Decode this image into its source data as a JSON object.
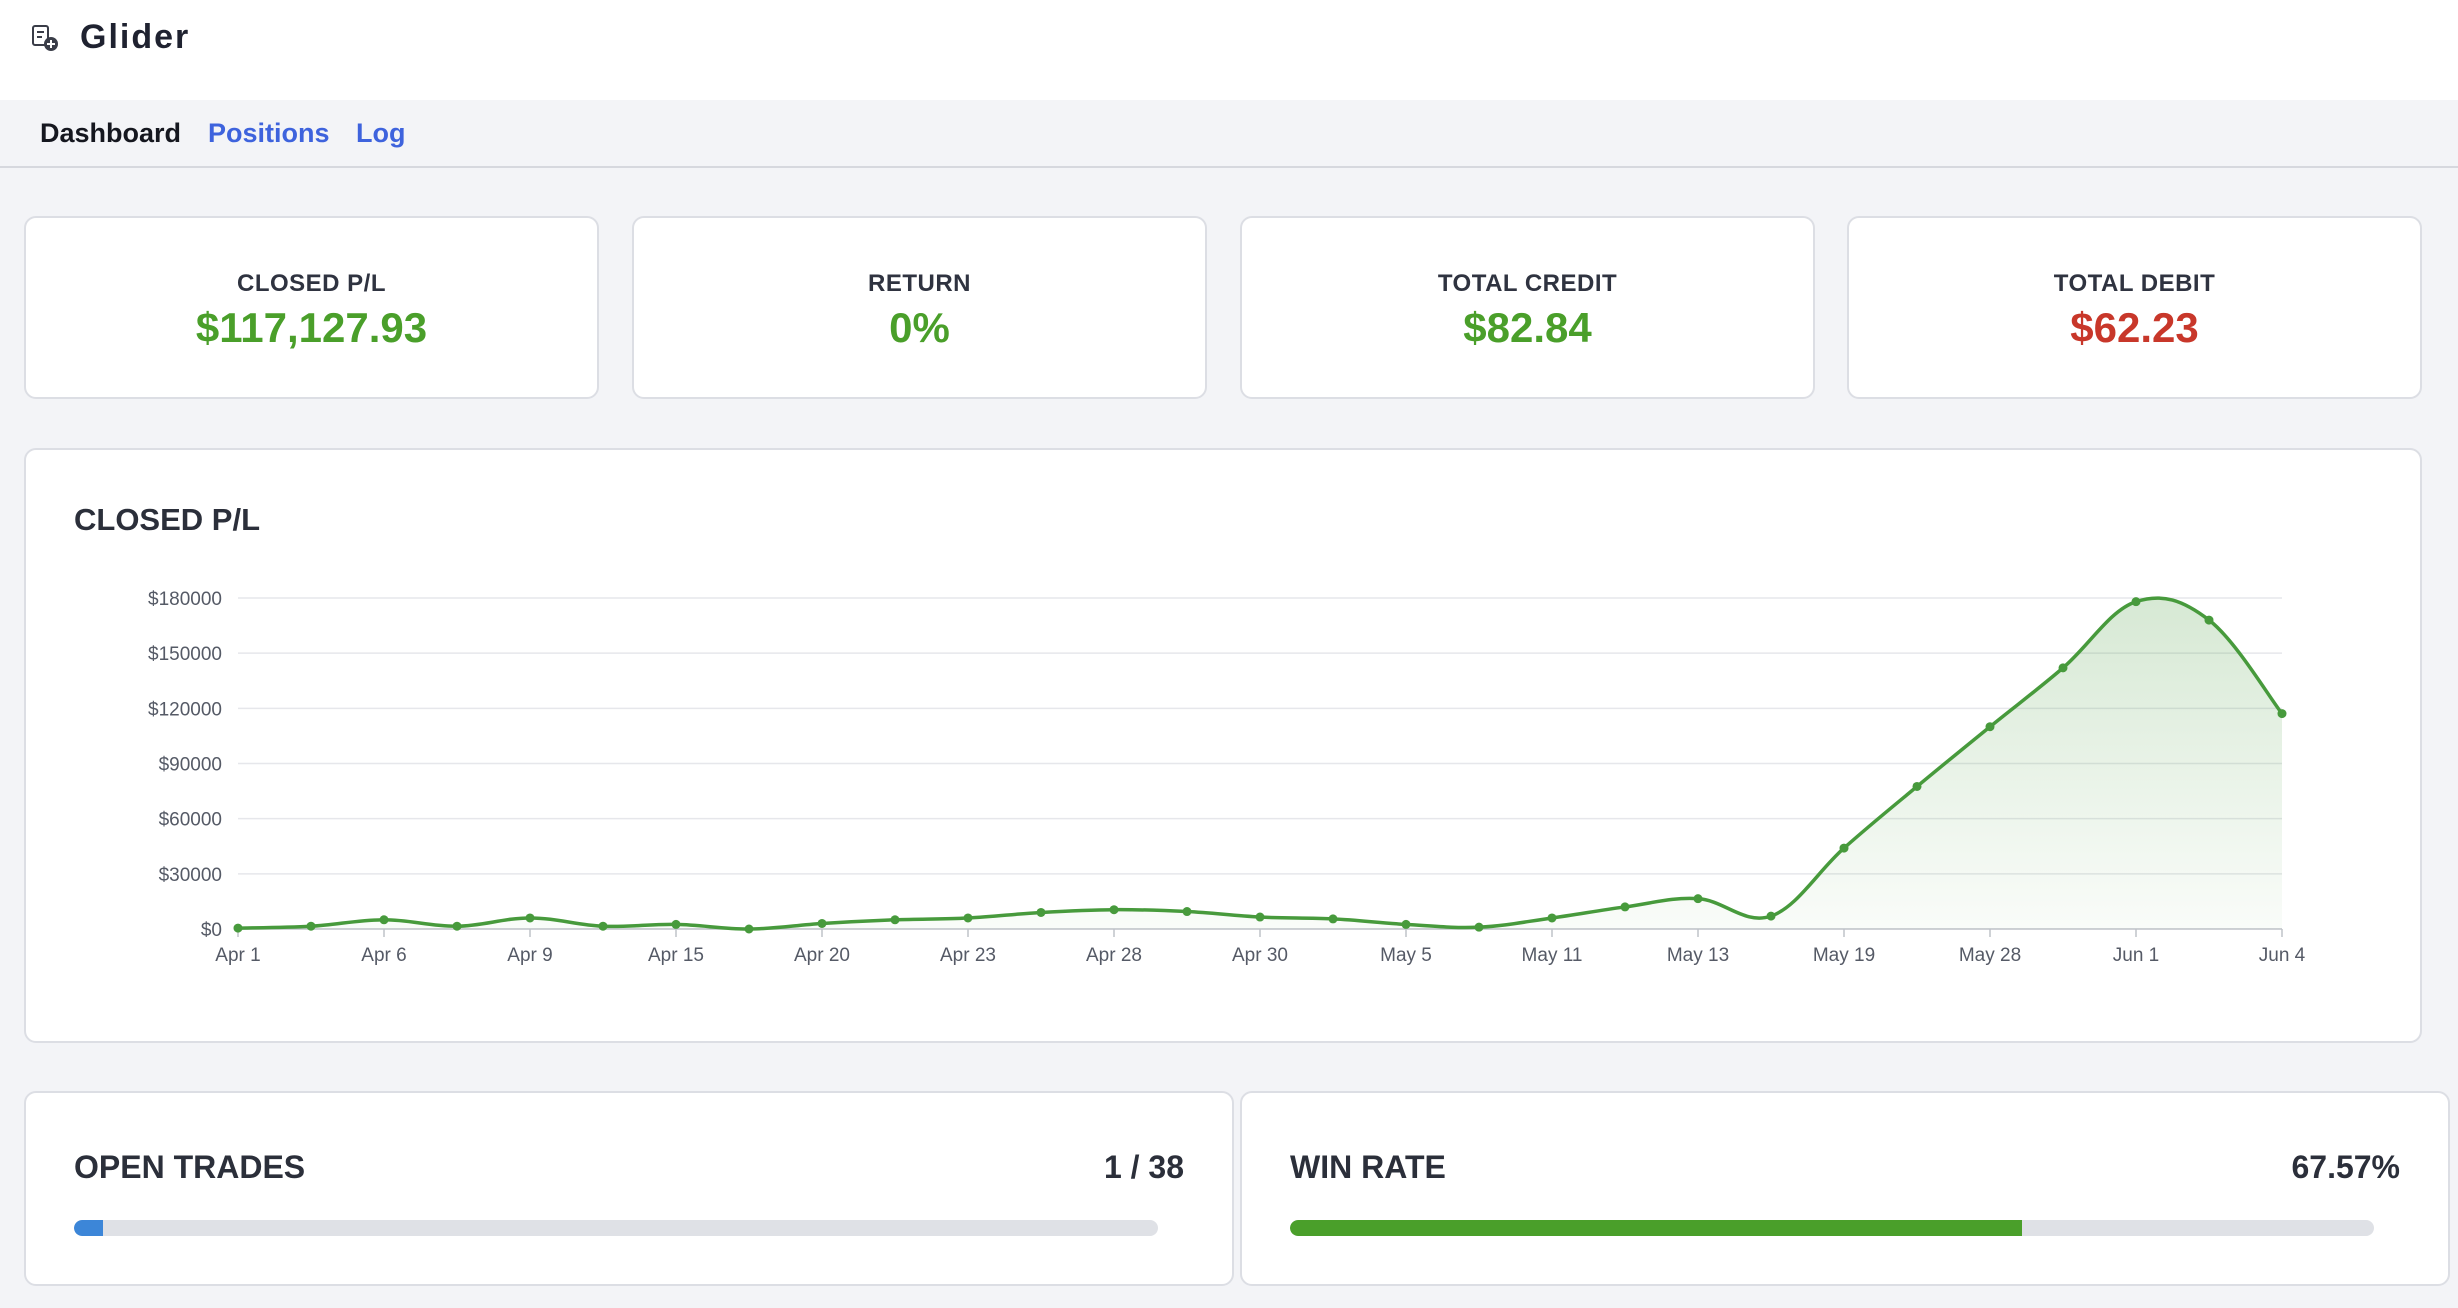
{
  "app": {
    "name": "Glider"
  },
  "nav": {
    "tabs": [
      {
        "label": "Dashboard",
        "active": true
      },
      {
        "label": "Positions",
        "active": false
      },
      {
        "label": "Log",
        "active": false
      }
    ]
  },
  "stats": [
    {
      "label": "CLOSED P/L",
      "value": "$117,127.93",
      "color": "#4a9f2a"
    },
    {
      "label": "RETURN",
      "value": "0%",
      "color": "#4a9f2a"
    },
    {
      "label": "TOTAL CREDIT",
      "value": "$82.84",
      "color": "#4a9f2a"
    },
    {
      "label": "TOTAL DEBIT",
      "value": "$62.23",
      "color": "#c8372a"
    }
  ],
  "chart": {
    "title": "CLOSED P/L"
  },
  "chart_data": {
    "type": "area",
    "title": "CLOSED P/L",
    "xlabel": "",
    "ylabel": "",
    "ylim": [
      0,
      180000
    ],
    "yticks": [
      0,
      30000,
      60000,
      90000,
      120000,
      150000,
      180000
    ],
    "ytick_labels": [
      "$0",
      "$30000",
      "$60000",
      "$90000",
      "$120000",
      "$150000",
      "$180000"
    ],
    "xtick_labels": [
      "Apr 1",
      "Apr 6",
      "Apr 9",
      "Apr 15",
      "Apr 20",
      "Apr 23",
      "Apr 28",
      "Apr 30",
      "May 5",
      "May 11",
      "May 13",
      "May 19",
      "May 28",
      "Jun 1",
      "Jun 4"
    ],
    "grid": true,
    "legend": "none",
    "color": "#479a3c",
    "values": [
      500,
      1500,
      5000,
      1500,
      6000,
      1500,
      2500,
      0,
      3000,
      5000,
      6000,
      9000,
      10500,
      9500,
      6500,
      5500,
      2500,
      1000,
      6000,
      12000,
      16500,
      7000,
      44000,
      77500,
      110000,
      142000,
      178000,
      168000,
      117128
    ]
  },
  "open_trades": {
    "title": "OPEN TRADES",
    "value": "1 / 38",
    "fraction": 0.0263,
    "color": "#3c86d8"
  },
  "win_rate": {
    "title": "WIN RATE",
    "value": "67.57%",
    "fraction": 0.6757,
    "color": "#4a9f2a"
  }
}
